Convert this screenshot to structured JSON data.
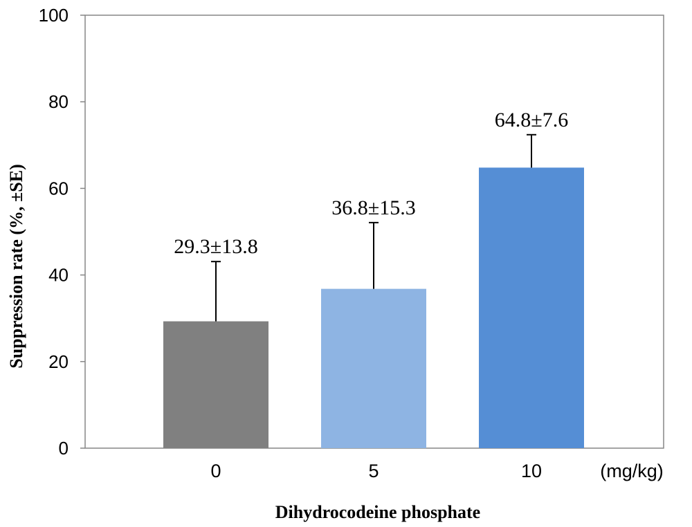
{
  "chart_data": {
    "type": "bar",
    "categories": [
      "0",
      "5",
      "10"
    ],
    "values": [
      29.3,
      36.8,
      64.8
    ],
    "errors": [
      13.8,
      15.3,
      7.6
    ],
    "data_labels": [
      "29.3±13.8",
      "36.8±15.3",
      "64.8±7.6"
    ],
    "bar_colors": [
      "#808080",
      "#8eb4e3",
      "#558ed5"
    ],
    "title": "",
    "xlabel": "Dihydrocodeine phosphate",
    "x_unit_label": "(mg/kg)",
    "ylabel": "Suppression rate (%, ±SE)",
    "ylim": [
      0,
      100
    ],
    "yticks": [
      0,
      20,
      40,
      60,
      80,
      100
    ],
    "grid": false,
    "legend": "none"
  }
}
